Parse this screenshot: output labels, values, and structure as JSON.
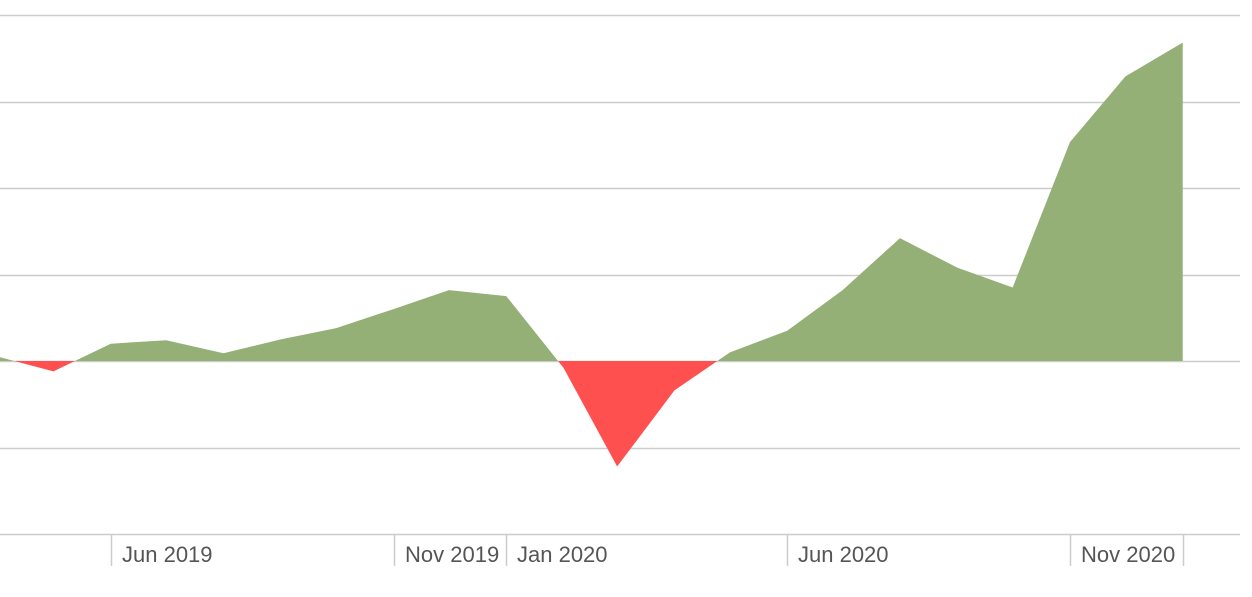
{
  "chart_data": {
    "type": "area",
    "title": "",
    "xlabel": "",
    "ylabel": "",
    "x_axis": "dates",
    "y_range": [
      -2,
      4
    ],
    "y_ticks": [
      -2,
      -1,
      0,
      1,
      2,
      3,
      4
    ],
    "y_tick_labels_visible": false,
    "grid": true,
    "legend": "none",
    "x_tick_labels": [
      {
        "label": "Jun 2019",
        "date": "2019-06-01"
      },
      {
        "label": "Nov 2019",
        "date": "2019-11-01"
      },
      {
        "label": "Jan 2020",
        "date": "2020-01-01"
      },
      {
        "label": "Jun 2020",
        "date": "2020-06-01"
      },
      {
        "label": "Nov 2020",
        "date": "2020-11-01"
      }
    ],
    "extra_tick_dates": [
      "2019-04-01",
      "2021-01-01"
    ],
    "x_range": [
      "2019-04-01",
      "2021-02-01"
    ],
    "colors": {
      "positive": "#94b077",
      "negative": "#ff5050",
      "grid": "#cccccc",
      "tick_label": "#555555"
    },
    "series": [
      {
        "x": [
          "2019-04-01",
          "2019-05-01",
          "2019-06-01",
          "2019-07-01",
          "2019-08-01",
          "2019-09-01",
          "2019-10-01",
          "2019-11-01",
          "2019-12-01",
          "2020-01-01",
          "2020-02-01",
          "2020-03-01",
          "2020-04-01",
          "2020-05-01",
          "2020-06-01",
          "2020-07-01",
          "2020-08-01",
          "2020-09-01",
          "2020-10-01",
          "2020-11-01",
          "2020-12-01",
          "2021-01-01"
        ],
        "values": [
          0.05,
          -0.12,
          0.2,
          0.24,
          0.09,
          0.25,
          0.38,
          0.6,
          0.82,
          0.75,
          -0.08,
          -1.22,
          -0.34,
          0.1,
          0.35,
          0.82,
          1.42,
          1.08,
          0.85,
          2.53,
          3.29,
          3.68
        ]
      }
    ]
  }
}
